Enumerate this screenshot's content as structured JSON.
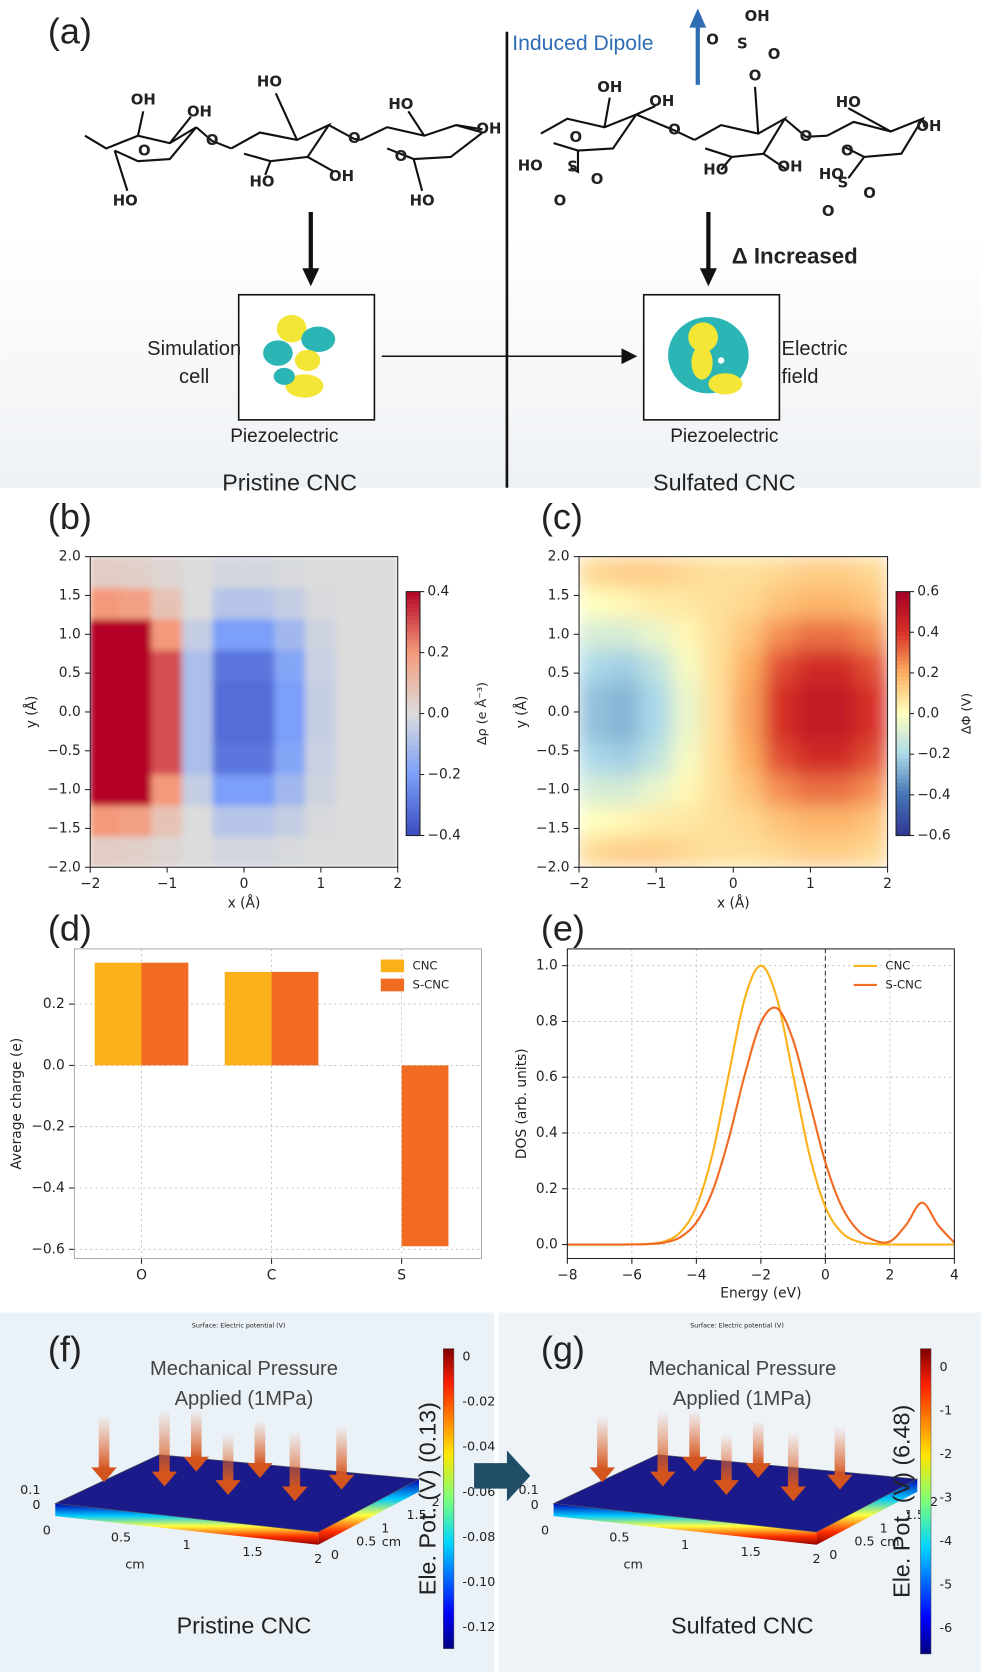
{
  "figure": {
    "panel_labels": [
      "(a)",
      "(b)",
      "(c)",
      "(d)",
      "(e)",
      "(f)",
      "(g)"
    ],
    "a": {
      "induced_dipole": "Induced Dipole",
      "increased": "Δ Increased",
      "sim_cell": [
        "Simulation",
        "cell"
      ],
      "electric_field": [
        "Electric",
        "field"
      ],
      "piezo": [
        "Piezoelectric",
        "Piezoelectric"
      ],
      "pristine": "Pristine CNC",
      "sulfated": "Sulfated CNC",
      "left_atoms": [
        "OH",
        "OH",
        "HO",
        "HO",
        "OH",
        "O",
        "O",
        "O",
        "HO",
        "OH",
        "HO",
        "HO",
        "O"
      ],
      "right_atoms": [
        "OH",
        "O",
        "S",
        "O",
        "O",
        "OH",
        "OH",
        "HO",
        "OH",
        "O",
        "O",
        "HO",
        "S",
        "O",
        "O",
        "O",
        "HO",
        "OH",
        "HO",
        "S",
        "O",
        "O",
        "O"
      ]
    },
    "f": {
      "surface": "Surface: Electric potential (V)",
      "pressure": [
        "Mechanical Pressure",
        "Applied (1MPa)"
      ],
      "cbar_ticks": [
        "0",
        "-0.02",
        "-0.04",
        "-0.06",
        "-0.08",
        "-0.10",
        "-0.12"
      ],
      "cbar_label": "Ele. Pot. (V) (0.13)",
      "ticks_z": [
        "0.1",
        "0"
      ],
      "ticks_len": [
        "0",
        "0.5",
        "1",
        "1.5",
        "2"
      ],
      "ticks_wid": [
        "0",
        "0.5",
        "1",
        "1.5",
        "2"
      ],
      "unit_len": "cm",
      "unit_wid": "cm",
      "caption": "Pristine CNC"
    },
    "g": {
      "surface": "Surface: Electric potential (V)",
      "pressure": [
        "Mechanical Pressure",
        "Applied (1MPa)"
      ],
      "cbar_ticks": [
        "0",
        "-1",
        "-2",
        "-3",
        "-4",
        "-5",
        "-6"
      ],
      "cbar_label": "Ele. Pot. (V) (6.48)",
      "ticks_z": [
        "0.1",
        "0"
      ],
      "ticks_len": [
        "0",
        "0.5",
        "1",
        "1.5",
        "2"
      ],
      "ticks_wid": [
        "0",
        "0.5",
        "1",
        "1.5",
        "2"
      ],
      "unit_len": "cm",
      "unit_wid": "cm",
      "caption": "Sulfated CNC"
    }
  },
  "chart_data": [
    {
      "type": "heatmap",
      "xlabel": "x (Å)",
      "ylabel": "y (Å)",
      "clabel": "Δρ (e Å⁻³)",
      "x": [
        -1.8,
        -1.4,
        -1.0,
        -0.6,
        -0.2,
        0.2,
        0.6,
        1.0,
        1.4,
        1.8
      ],
      "y": [
        -1.8,
        -1.4,
        -1.0,
        -0.6,
        -0.2,
        0.2,
        0.6,
        1.0,
        1.4,
        1.8
      ],
      "z": [
        [
          0.05,
          0.04,
          0.02,
          0,
          -0.02,
          -0.02,
          -0.01,
          0,
          0,
          0
        ],
        [
          0.2,
          0.18,
          0.08,
          0,
          -0.08,
          -0.08,
          -0.05,
          -0.01,
          0,
          0
        ],
        [
          0.4,
          0.4,
          0.2,
          -0.05,
          -0.2,
          -0.2,
          -0.12,
          -0.03,
          0,
          0
        ],
        [
          0.4,
          0.4,
          0.3,
          -0.1,
          -0.3,
          -0.3,
          -0.18,
          -0.04,
          0,
          0
        ],
        [
          0.4,
          0.4,
          0.3,
          -0.1,
          -0.32,
          -0.32,
          -0.2,
          -0.05,
          0,
          0
        ],
        [
          0.4,
          0.4,
          0.3,
          -0.1,
          -0.32,
          -0.32,
          -0.2,
          -0.05,
          0,
          0
        ],
        [
          0.4,
          0.4,
          0.3,
          -0.1,
          -0.3,
          -0.3,
          -0.18,
          -0.04,
          0,
          0
        ],
        [
          0.4,
          0.4,
          0.2,
          -0.05,
          -0.2,
          -0.2,
          -0.12,
          -0.03,
          0,
          0
        ],
        [
          0.2,
          0.18,
          0.08,
          0,
          -0.08,
          -0.08,
          -0.05,
          -0.01,
          0,
          0
        ],
        [
          0.05,
          0.04,
          0.02,
          0,
          -0.02,
          -0.02,
          -0.01,
          0,
          0,
          0
        ]
      ],
      "colormap": [
        "#3b4cc0",
        "#7b9ff9",
        "#dcdcdc",
        "#f49a7b",
        "#b40426"
      ],
      "blur": 3,
      "xlim": [
        -2,
        2
      ],
      "ylim": [
        -2,
        2
      ],
      "clim": [
        -0.4,
        0.4
      ],
      "xticks": [
        {
          "value": -2,
          "label": "−2"
        },
        {
          "value": -1,
          "label": "−1"
        },
        0,
        1,
        2
      ],
      "yticks": [
        {
          "value": -2,
          "label": "−2.0"
        },
        {
          "value": -1.5,
          "label": "−1.5"
        },
        {
          "value": -1,
          "label": "−1.0"
        },
        {
          "value": -0.5,
          "label": "−0.5"
        },
        {
          "value": 0,
          "label": "0.0"
        },
        0.5,
        {
          "value": 1,
          "label": "1.0"
        },
        1.5,
        {
          "value": 2,
          "label": "2.0"
        }
      ],
      "cticks": [
        {
          "value": -0.4,
          "label": "−0.4"
        },
        {
          "value": -0.2,
          "label": "−0.2"
        },
        {
          "value": 0,
          "label": "0.0"
        },
        0.2,
        0.4
      ]
    },
    {
      "type": "heatmap",
      "xlabel": "x (Å)",
      "ylabel": "y (Å)",
      "clabel": "ΔΦ (V)",
      "x": [
        -1.8,
        -1.4,
        -1.0,
        -0.6,
        -0.2,
        0.2,
        0.6,
        1.0,
        1.4,
        1.8
      ],
      "y": [
        -1.8,
        -1.4,
        -1.0,
        -0.6,
        -0.2,
        0.2,
        0.6,
        1.0,
        1.4,
        1.8
      ],
      "z": [
        [
          0.1,
          0.12,
          0.12,
          0.1,
          0.08,
          0.08,
          0.1,
          0.12,
          0.12,
          0.1
        ],
        [
          0,
          0.02,
          0.05,
          0.06,
          0.08,
          0.1,
          0.15,
          0.18,
          0.18,
          0.15
        ],
        [
          -0.1,
          -0.1,
          -0.05,
          0.02,
          0.08,
          0.15,
          0.25,
          0.3,
          0.3,
          0.25
        ],
        [
          -0.2,
          -0.22,
          -0.15,
          -0.02,
          0.08,
          0.2,
          0.35,
          0.42,
          0.42,
          0.35
        ],
        [
          -0.25,
          -0.27,
          -0.2,
          -0.05,
          0.08,
          0.22,
          0.4,
          0.48,
          0.48,
          0.4
        ],
        [
          -0.25,
          -0.27,
          -0.2,
          -0.05,
          0.08,
          0.22,
          0.4,
          0.48,
          0.48,
          0.4
        ],
        [
          -0.2,
          -0.22,
          -0.15,
          -0.02,
          0.08,
          0.2,
          0.35,
          0.42,
          0.42,
          0.35
        ],
        [
          -0.1,
          -0.1,
          -0.05,
          0.02,
          0.08,
          0.15,
          0.25,
          0.3,
          0.3,
          0.25
        ],
        [
          0,
          0.02,
          0.05,
          0.06,
          0.08,
          0.1,
          0.15,
          0.18,
          0.18,
          0.15
        ],
        [
          0.1,
          0.12,
          0.12,
          0.1,
          0.08,
          0.08,
          0.1,
          0.12,
          0.12,
          0.1
        ]
      ],
      "colormap": [
        "#313695",
        "#4575b4",
        "#abd9e9",
        "#ffffbf",
        "#fdae61",
        "#d73027",
        "#a50026"
      ],
      "blur": 9,
      "xlim": [
        -2,
        2
      ],
      "ylim": [
        -2,
        2
      ],
      "clim": [
        -0.6,
        0.6
      ],
      "xticks": [
        {
          "value": -2,
          "label": "−2"
        },
        {
          "value": -1,
          "label": "−1"
        },
        0,
        1,
        2
      ],
      "yticks": [
        {
          "value": -2,
          "label": "−2.0"
        },
        {
          "value": -1.5,
          "label": "−1.5"
        },
        {
          "value": -1,
          "label": "−1.0"
        },
        {
          "value": -0.5,
          "label": "−0.5"
        },
        {
          "value": 0,
          "label": "0.0"
        },
        0.5,
        {
          "value": 1,
          "label": "1.0"
        },
        1.5,
        {
          "value": 2,
          "label": "2.0"
        }
      ],
      "cticks": [
        {
          "value": -0.6,
          "label": "−0.6"
        },
        {
          "value": -0.4,
          "label": "−0.4"
        },
        {
          "value": -0.2,
          "label": "−0.2"
        },
        {
          "value": 0,
          "label": "0.0"
        },
        0.2,
        0.4,
        0.6
      ]
    },
    {
      "type": "bar",
      "ylabel": "Average charge (e)",
      "categories": [
        "O",
        "C",
        "S"
      ],
      "series": [
        {
          "name": "CNC",
          "color": "#fbb119",
          "values": [
            0.335,
            0.305,
            null
          ]
        },
        {
          "name": "S-CNC",
          "color": "#f26b23",
          "values": [
            0.335,
            0.305,
            -0.59
          ]
        }
      ],
      "ylim": [
        -0.63,
        0.38
      ],
      "yticks": [
        {
          "value": -0.6,
          "label": "−0.6"
        },
        {
          "value": -0.4,
          "label": "−0.4"
        },
        {
          "value": -0.2,
          "label": "−0.2"
        },
        {
          "value": 0,
          "label": "0.0"
        },
        0.2
      ],
      "grid": true,
      "legend": "upper right"
    },
    {
      "type": "line",
      "xlabel": "Energy (eV)",
      "ylabel": "DOS (arb. units)",
      "x": [
        -8,
        -7.5,
        -7,
        -6.5,
        -6,
        -5.5,
        -5,
        -4.5,
        -4,
        -3.5,
        -3,
        -2.5,
        -2,
        -1.5,
        -1,
        -0.5,
        0,
        0.5,
        1,
        1.5,
        2,
        2.5,
        3,
        3.5,
        4
      ],
      "series": [
        {
          "name": "CNC",
          "color": "#fbb119",
          "values": [
            0,
            0,
            0,
            0,
            0.0003,
            0.0022,
            0.011,
            0.044,
            0.135,
            0.325,
            0.607,
            0.882,
            1,
            0.882,
            0.607,
            0.325,
            0.135,
            0.044,
            0.011,
            0.0022,
            0.0003,
            0,
            0,
            0,
            0
          ]
        },
        {
          "name": "S-CNC",
          "color": "#f26b23",
          "values": [
            0,
            0,
            0,
            0,
            0.0003,
            0.0016,
            0.0071,
            0.026,
            0.079,
            0.191,
            0.378,
            0.608,
            0.796,
            0.847,
            0.733,
            0.516,
            0.295,
            0.138,
            0.052,
            0.016,
            0.011,
            0.07,
            0.15,
            0.069,
            0.0066
          ]
        }
      ],
      "vline": 0,
      "xlim": [
        -8,
        4
      ],
      "ylim": [
        -0.05,
        1.06
      ],
      "xticks": [
        {
          "value": -8,
          "label": "−8"
        },
        {
          "value": -6,
          "label": "−6"
        },
        {
          "value": -4,
          "label": "−4"
        },
        {
          "value": -2,
          "label": "−2"
        },
        0,
        2,
        4
      ],
      "yticks": [
        {
          "value": 0,
          "label": "0.0"
        },
        0.2,
        0.4,
        0.6,
        0.8,
        {
          "value": 1,
          "label": "1.0"
        }
      ],
      "grid": true,
      "legend": "upper right"
    }
  ]
}
